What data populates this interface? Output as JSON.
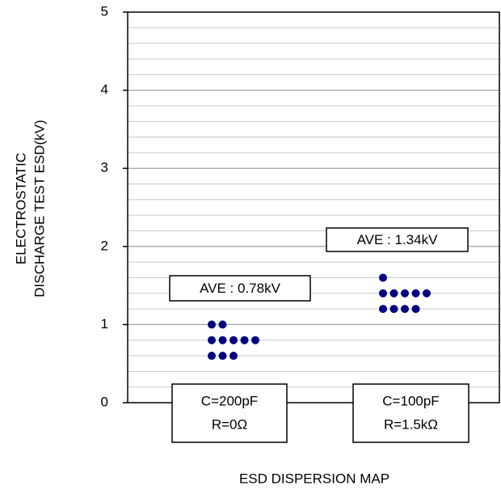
{
  "chart_data": {
    "type": "dot",
    "title": "ESD DISPERSION MAP",
    "y_label": [
      "ELECTROSTATIC",
      "DISCHARGE TEST ESD(kV)"
    ],
    "ylim": [
      0,
      5
    ],
    "yticks": [
      0,
      1,
      2,
      3,
      4,
      5
    ],
    "minor_grid_step": 0.2,
    "grid": true,
    "color": "#000080",
    "groups": [
      {
        "label": [
          "C=200pF",
          "R=0Ω"
        ],
        "annotation": "AVE : 0.78kV",
        "values": [
          1,
          1,
          0.8,
          0.8,
          0.8,
          0.8,
          0.8,
          0.6,
          0.6,
          0.6
        ]
      },
      {
        "label": [
          "C=100pF",
          "R=1.5kΩ"
        ],
        "annotation": "AVE : 1.34kV",
        "values": [
          1.6,
          1.4,
          1.4,
          1.4,
          1.4,
          1.4,
          1.2,
          1.2,
          1.2,
          1.2
        ]
      }
    ]
  }
}
